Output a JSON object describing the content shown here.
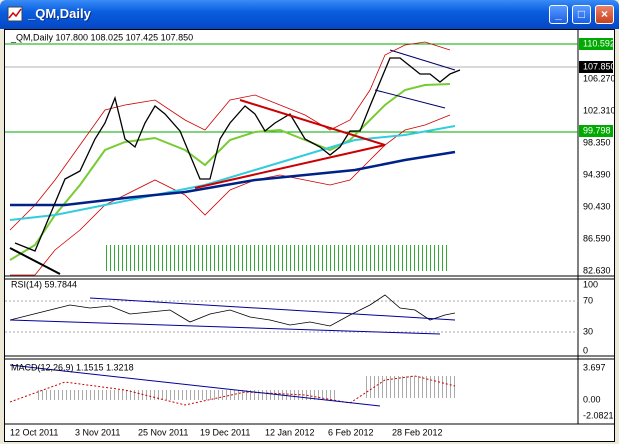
{
  "window": {
    "title": "_QM,Daily"
  },
  "main_panel": {
    "header": "_QM,Daily  107.800 108.025 107.425 107.850",
    "price_labels": [
      "110.592",
      "107.850",
      "106.270",
      "102.310",
      "99.798",
      "98.350",
      "94.390",
      "90.430",
      "86.590",
      "82.630"
    ]
  },
  "rsi_panel": {
    "header": "RSI(14) 59.7844",
    "levels": [
      "100",
      "70",
      "30",
      "0"
    ]
  },
  "macd_panel": {
    "header": "MACD(12,26,9) 1.1515 1.3218",
    "levels": [
      "3.697",
      "0.00",
      "-2.0821"
    ]
  },
  "date_axis": [
    "12 Oct 2011",
    "3 Nov 2011",
    "25 Nov 2011",
    "19 Dec 2011",
    "12 Jan 2012",
    "6 Feb 2012",
    "28 Feb 2012"
  ]
}
